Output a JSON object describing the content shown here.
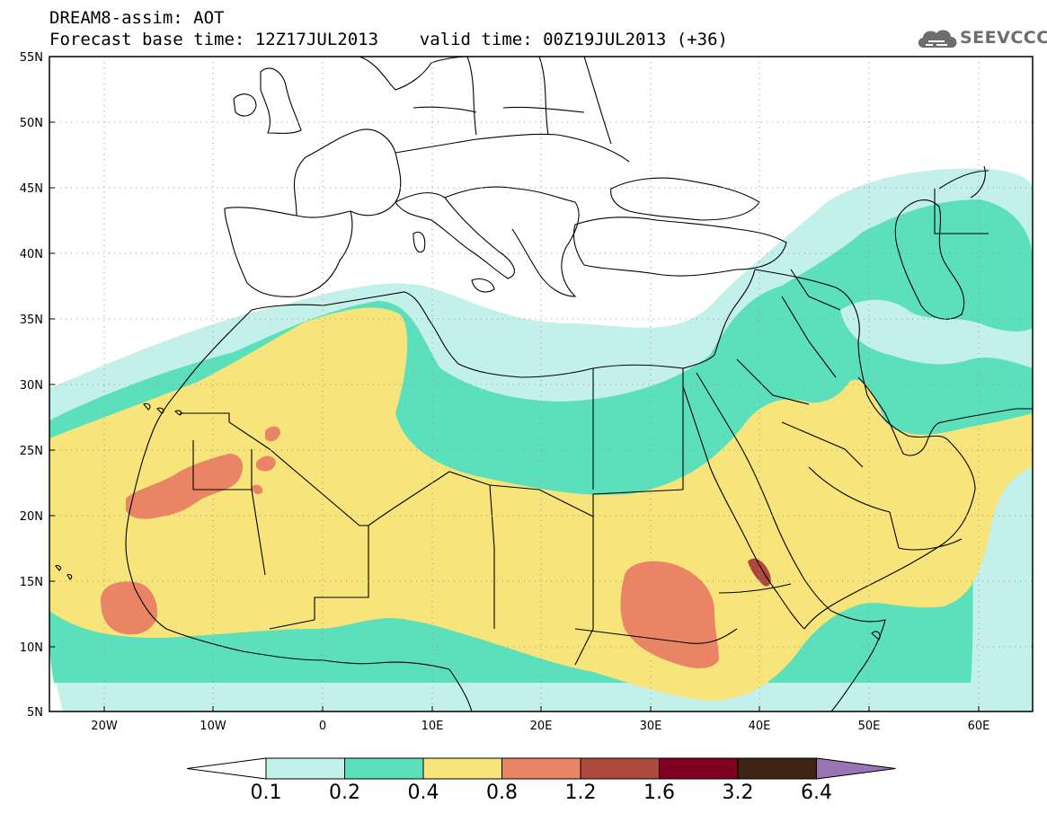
{
  "header": {
    "title": "DREAM8-assim: AOT",
    "subtitle": "Forecast base time: 12Z17JUL2013    valid time: 00Z19JUL2013 (+36)",
    "logo_text": "SEEVCCC",
    "logo_icon": "cloud-icon"
  },
  "map": {
    "lon_range": [
      -25,
      65
    ],
    "lat_range": [
      5,
      55
    ],
    "lat_ticks": [
      "5N",
      "10N",
      "15N",
      "20N",
      "25N",
      "30N",
      "35N",
      "40N",
      "45N",
      "50N",
      "55N"
    ],
    "lon_ticks": [
      "20W",
      "10W",
      "0",
      "10E",
      "20E",
      "30E",
      "40E",
      "50E",
      "60E"
    ],
    "grid": "dotted",
    "region": "North Africa, Europe, Middle East"
  },
  "colorbar": {
    "levels": [
      "0.1",
      "0.2",
      "0.4",
      "0.8",
      "1.2",
      "1.6",
      "3.2",
      "6.4"
    ],
    "colors": [
      "#ffffff",
      "#c3f0ea",
      "#5ce0bb",
      "#f7e47a",
      "#e98565",
      "#ad4a3d",
      "#800022",
      "#3f2313",
      "#9b74b7"
    ],
    "extend": "both"
  }
}
